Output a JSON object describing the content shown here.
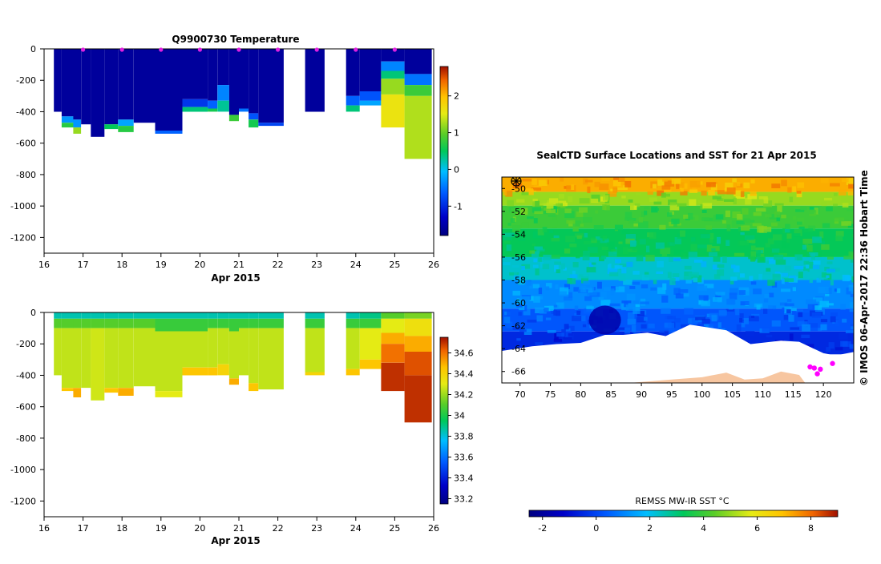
{
  "temperature_panel": {
    "title": "Q9900730  Temperature",
    "xlabel": "Apr 2015",
    "x_ticks": [
      "16",
      "17",
      "18",
      "19",
      "20",
      "21",
      "22",
      "23",
      "24",
      "25",
      "26"
    ],
    "y_ticks": [
      "0",
      "-200",
      "-400",
      "-600",
      "-800",
      "-1000",
      "-1200"
    ],
    "colorbar_ticks": [
      "2",
      "1",
      "0",
      "-1"
    ]
  },
  "salinity_panel": {
    "title": "",
    "xlabel": "Apr 2015",
    "x_ticks": [
      "16",
      "17",
      "18",
      "19",
      "20",
      "21",
      "22",
      "23",
      "24",
      "25",
      "26"
    ],
    "y_ticks": [
      "0",
      "-200",
      "-400",
      "-600",
      "-800",
      "-1000",
      "-1200"
    ],
    "colorbar_ticks": [
      "34.6",
      "34.4",
      "34.2",
      "34",
      "33.8",
      "33.6",
      "33.4",
      "33.2"
    ]
  },
  "map_panel": {
    "title": "SealCTD Surface Locations and SST for 21 Apr 2015",
    "lon_ticks": [
      "70",
      "75",
      "80",
      "85",
      "90",
      "95",
      "100",
      "105",
      "110",
      "115",
      "120"
    ],
    "lat_ticks": [
      "-50",
      "-52",
      "-54",
      "-56",
      "-58",
      "-60",
      "-62",
      "-64",
      "-66"
    ],
    "copyright": "© IMOS 06-Apr-2017 22:36 Hobart Time",
    "colorbar_label": "REMSS MW-IR SST °C",
    "colorbar_ticks": [
      "-2",
      "0",
      "2",
      "4",
      "6",
      "8"
    ]
  },
  "chart_data": [
    {
      "type": "heatmap",
      "title": "Q9900730  Temperature",
      "xlabel": "Apr 2015",
      "ylabel": "",
      "xlim": [
        16,
        26
      ],
      "ylim": [
        -1300,
        0
      ],
      "color_range": [
        -1.8,
        2.8
      ],
      "profile_markers_x": [
        17,
        18,
        19,
        20,
        21,
        22,
        23,
        24,
        25
      ],
      "profiles": [
        {
          "x0": 16.25,
          "x1": 16.45,
          "layers": [
            {
              "to": -400,
              "v": -1.6
            }
          ]
        },
        {
          "x0": 16.45,
          "x1": 16.75,
          "layers": [
            {
              "to": -430,
              "v": -1.6
            },
            {
              "to": -470,
              "v": -0.3
            },
            {
              "to": -500,
              "v": 0.7
            }
          ]
        },
        {
          "x0": 16.75,
          "x1": 16.95,
          "layers": [
            {
              "to": -450,
              "v": -1.6
            },
            {
              "to": -500,
              "v": -0.3
            },
            {
              "to": -540,
              "v": 1.2
            }
          ]
        },
        {
          "x0": 16.95,
          "x1": 17.2,
          "layers": [
            {
              "to": -480,
              "v": -1.6
            }
          ]
        },
        {
          "x0": 17.2,
          "x1": 17.55,
          "layers": [
            {
              "to": -560,
              "v": -1.6
            }
          ]
        },
        {
          "x0": 17.55,
          "x1": 17.9,
          "layers": [
            {
              "to": -480,
              "v": -1.6
            },
            {
              "to": -510,
              "v": 0.5
            }
          ]
        },
        {
          "x0": 17.9,
          "x1": 18.3,
          "layers": [
            {
              "to": -450,
              "v": -1.6
            },
            {
              "to": -490,
              "v": -0.2
            },
            {
              "to": -530,
              "v": 0.7
            }
          ]
        },
        {
          "x0": 18.3,
          "x1": 18.85,
          "layers": [
            {
              "to": -470,
              "v": -1.6
            }
          ]
        },
        {
          "x0": 18.85,
          "x1": 19.55,
          "layers": [
            {
              "to": -520,
              "v": -1.6
            },
            {
              "to": -540,
              "v": -0.6
            }
          ]
        },
        {
          "x0": 19.55,
          "x1": 20.2,
          "layers": [
            {
              "to": -320,
              "v": -1.6
            },
            {
              "to": -370,
              "v": -0.9
            },
            {
              "to": -400,
              "v": 0.4
            }
          ]
        },
        {
          "x0": 20.2,
          "x1": 20.45,
          "layers": [
            {
              "to": -330,
              "v": -1.6
            },
            {
              "to": -380,
              "v": -0.6
            },
            {
              "to": -400,
              "v": 0.6
            }
          ]
        },
        {
          "x0": 20.45,
          "x1": 20.75,
          "layers": [
            {
              "to": -230,
              "v": -1.6
            },
            {
              "to": -330,
              "v": -0.4
            },
            {
              "to": -400,
              "v": 0.3
            }
          ]
        },
        {
          "x0": 20.75,
          "x1": 21.0,
          "layers": [
            {
              "to": -420,
              "v": -1.6
            },
            {
              "to": -460,
              "v": 0.8
            }
          ]
        },
        {
          "x0": 21.0,
          "x1": 21.25,
          "layers": [
            {
              "to": -380,
              "v": -1.6
            },
            {
              "to": -400,
              "v": -0.5
            }
          ]
        },
        {
          "x0": 21.25,
          "x1": 21.5,
          "layers": [
            {
              "to": -410,
              "v": -1.6
            },
            {
              "to": -450,
              "v": -0.7
            },
            {
              "to": -500,
              "v": 0.6
            }
          ]
        },
        {
          "x0": 21.5,
          "x1": 22.15,
          "layers": [
            {
              "to": -470,
              "v": -1.6
            },
            {
              "to": -490,
              "v": -0.8
            }
          ]
        },
        {
          "x0": 22.7,
          "x1": 23.2,
          "layers": [
            {
              "to": -400,
              "v": -1.6
            }
          ]
        },
        {
          "x0": 23.75,
          "x1": 24.1,
          "layers": [
            {
              "to": -300,
              "v": -1.6
            },
            {
              "to": -360,
              "v": -0.6
            },
            {
              "to": -400,
              "v": 0.4
            }
          ]
        },
        {
          "x0": 24.1,
          "x1": 24.65,
          "layers": [
            {
              "to": -270,
              "v": -1.6
            },
            {
              "to": -330,
              "v": -0.7
            },
            {
              "to": -360,
              "v": -0.2
            }
          ]
        },
        {
          "x0": 24.65,
          "x1": 25.25,
          "layers": [
            {
              "to": -80,
              "v": -1.6
            },
            {
              "to": -140,
              "v": -0.4
            },
            {
              "to": -190,
              "v": 0.4
            },
            {
              "to": -290,
              "v": 1.2
            },
            {
              "to": -500,
              "v": 1.6
            }
          ]
        },
        {
          "x0": 25.25,
          "x1": 25.95,
          "layers": [
            {
              "to": -160,
              "v": -1.6
            },
            {
              "to": -230,
              "v": -0.5
            },
            {
              "to": -300,
              "v": 0.8
            },
            {
              "to": -700,
              "v": 1.3
            }
          ]
        }
      ]
    },
    {
      "type": "heatmap",
      "title": "",
      "xlabel": "Apr 2015",
      "ylabel": "",
      "xlim": [
        16,
        26
      ],
      "ylim": [
        -1300,
        0
      ],
      "color_range": [
        33.15,
        34.75
      ],
      "profiles": [
        {
          "x0": 16.25,
          "x1": 16.45,
          "layers": [
            {
              "to": -40,
              "v": 33.85
            },
            {
              "to": -100,
              "v": 34.1
            },
            {
              "to": -400,
              "v": 34.25
            }
          ]
        },
        {
          "x0": 16.45,
          "x1": 16.75,
          "layers": [
            {
              "to": -40,
              "v": 33.85
            },
            {
              "to": -100,
              "v": 34.1
            },
            {
              "to": -480,
              "v": 34.25
            },
            {
              "to": -500,
              "v": 34.45
            }
          ]
        },
        {
          "x0": 16.75,
          "x1": 16.95,
          "layers": [
            {
              "to": -40,
              "v": 33.85
            },
            {
              "to": -100,
              "v": 34.1
            },
            {
              "to": -480,
              "v": 34.25
            },
            {
              "to": -540,
              "v": 34.5
            }
          ]
        },
        {
          "x0": 16.95,
          "x1": 17.2,
          "layers": [
            {
              "to": -40,
              "v": 33.85
            },
            {
              "to": -100,
              "v": 34.1
            },
            {
              "to": -480,
              "v": 34.25
            }
          ]
        },
        {
          "x0": 17.2,
          "x1": 17.55,
          "layers": [
            {
              "to": -40,
              "v": 33.85
            },
            {
              "to": -100,
              "v": 34.1
            },
            {
              "to": -560,
              "v": 34.27
            }
          ]
        },
        {
          "x0": 17.55,
          "x1": 17.9,
          "layers": [
            {
              "to": -40,
              "v": 33.85
            },
            {
              "to": -100,
              "v": 34.1
            },
            {
              "to": -480,
              "v": 34.25
            },
            {
              "to": -510,
              "v": 34.45
            }
          ]
        },
        {
          "x0": 17.9,
          "x1": 18.3,
          "layers": [
            {
              "to": -40,
              "v": 33.85
            },
            {
              "to": -100,
              "v": 34.1
            },
            {
              "to": -480,
              "v": 34.25
            },
            {
              "to": -530,
              "v": 34.5
            }
          ]
        },
        {
          "x0": 18.3,
          "x1": 18.85,
          "layers": [
            {
              "to": -40,
              "v": 33.85
            },
            {
              "to": -100,
              "v": 34.1
            },
            {
              "to": -470,
              "v": 34.25
            }
          ]
        },
        {
          "x0": 18.85,
          "x1": 19.55,
          "layers": [
            {
              "to": -40,
              "v": 33.85
            },
            {
              "to": -120,
              "v": 34.05
            },
            {
              "to": -500,
              "v": 34.25
            },
            {
              "to": -540,
              "v": 34.3
            }
          ]
        },
        {
          "x0": 19.55,
          "x1": 20.2,
          "layers": [
            {
              "to": -40,
              "v": 33.85
            },
            {
              "to": -120,
              "v": 34.05
            },
            {
              "to": -350,
              "v": 34.25
            },
            {
              "to": -400,
              "v": 34.45
            }
          ]
        },
        {
          "x0": 20.2,
          "x1": 20.45,
          "layers": [
            {
              "to": -40,
              "v": 33.85
            },
            {
              "to": -100,
              "v": 34.05
            },
            {
              "to": -350,
              "v": 34.25
            },
            {
              "to": -400,
              "v": 34.45
            }
          ]
        },
        {
          "x0": 20.45,
          "x1": 20.75,
          "layers": [
            {
              "to": -40,
              "v": 33.85
            },
            {
              "to": -100,
              "v": 34.05
            },
            {
              "to": -330,
              "v": 34.25
            },
            {
              "to": -400,
              "v": 34.4
            }
          ]
        },
        {
          "x0": 20.75,
          "x1": 21.0,
          "layers": [
            {
              "to": -40,
              "v": 33.85
            },
            {
              "to": -120,
              "v": 34.05
            },
            {
              "to": -420,
              "v": 34.25
            },
            {
              "to": -460,
              "v": 34.5
            }
          ]
        },
        {
          "x0": 21.0,
          "x1": 21.25,
          "layers": [
            {
              "to": -40,
              "v": 33.85
            },
            {
              "to": -100,
              "v": 34.05
            },
            {
              "to": -400,
              "v": 34.25
            }
          ]
        },
        {
          "x0": 21.25,
          "x1": 21.5,
          "layers": [
            {
              "to": -40,
              "v": 33.85
            },
            {
              "to": -100,
              "v": 34.05
            },
            {
              "to": -450,
              "v": 34.25
            },
            {
              "to": -500,
              "v": 34.45
            }
          ]
        },
        {
          "x0": 21.5,
          "x1": 22.15,
          "layers": [
            {
              "to": -40,
              "v": 33.85
            },
            {
              "to": -100,
              "v": 34.05
            },
            {
              "to": -490,
              "v": 34.25
            }
          ]
        },
        {
          "x0": 22.7,
          "x1": 23.2,
          "layers": [
            {
              "to": -40,
              "v": 33.85
            },
            {
              "to": -100,
              "v": 34.05
            },
            {
              "to": -380,
              "v": 34.25
            },
            {
              "to": -400,
              "v": 34.4
            }
          ]
        },
        {
          "x0": 23.75,
          "x1": 24.1,
          "layers": [
            {
              "to": -40,
              "v": 33.85
            },
            {
              "to": -100,
              "v": 34.05
            },
            {
              "to": -360,
              "v": 34.25
            },
            {
              "to": -400,
              "v": 34.45
            }
          ]
        },
        {
          "x0": 24.1,
          "x1": 24.65,
          "layers": [
            {
              "to": -40,
              "v": 33.9
            },
            {
              "to": -100,
              "v": 34.05
            },
            {
              "to": -300,
              "v": 34.3
            },
            {
              "to": -360,
              "v": 34.45
            }
          ]
        },
        {
          "x0": 24.65,
          "x1": 25.25,
          "layers": [
            {
              "to": -40,
              "v": 34.1
            },
            {
              "to": -130,
              "v": 34.3
            },
            {
              "to": -200,
              "v": 34.5
            },
            {
              "to": -320,
              "v": 34.6
            },
            {
              "to": -500,
              "v": 34.7
            }
          ]
        },
        {
          "x0": 25.25,
          "x1": 25.95,
          "layers": [
            {
              "to": -40,
              "v": 34.15
            },
            {
              "to": -150,
              "v": 34.35
            },
            {
              "to": -250,
              "v": 34.5
            },
            {
              "to": -400,
              "v": 34.65
            },
            {
              "to": -700,
              "v": 34.7
            }
          ]
        }
      ]
    },
    {
      "type": "heatmap",
      "title": "SealCTD Surface Locations and SST for 21 Apr 2015",
      "xlabel": "",
      "ylabel": "",
      "xlim": [
        67,
        125
      ],
      "ylim": [
        -67,
        -49
      ],
      "colorbar_label": "REMSS MW-IR SST °C",
      "color_range": [
        -2.5,
        9
      ],
      "sst_bands": [
        {
          "lat_top": -49,
          "lat_bottom": -50.3,
          "sst": 7.2
        },
        {
          "lat_top": -50.3,
          "lat_bottom": -51.5,
          "sst": 5.0
        },
        {
          "lat_top": -51.5,
          "lat_bottom": -53.5,
          "sst": 4.0
        },
        {
          "lat_top": -53.5,
          "lat_bottom": -56,
          "sst": 3.3
        },
        {
          "lat_top": -56,
          "lat_bottom": -58,
          "sst": 2.3
        },
        {
          "lat_top": -58,
          "lat_bottom": -60.5,
          "sst": 1.1
        },
        {
          "lat_top": -60.5,
          "lat_bottom": -62.5,
          "sst": 0.3
        },
        {
          "lat_top": -62.5,
          "lat_bottom": -64.5,
          "sst": -0.5
        }
      ],
      "cold_anomaly": {
        "lon_center": 84,
        "lat_center": -61.5,
        "sst": -1.8
      },
      "ice_edge": [
        [
          67,
          -64.2
        ],
        [
          72,
          -63.8
        ],
        [
          76,
          -63.6
        ],
        [
          80,
          -63.5
        ],
        [
          84,
          -62.8
        ],
        [
          87,
          -62.8
        ],
        [
          91,
          -62.6
        ],
        [
          94,
          -62.9
        ],
        [
          98,
          -61.9
        ],
        [
          104,
          -62.4
        ],
        [
          108,
          -63.6
        ],
        [
          113,
          -63.3
        ],
        [
          116,
          -63.4
        ],
        [
          120,
          -64.4
        ],
        [
          122,
          -64.6
        ],
        [
          125,
          -64.3
        ]
      ],
      "land": [
        [
          88,
          -67
        ],
        [
          95,
          -66.7
        ],
        [
          100,
          -66.5
        ],
        [
          104,
          -66.1
        ],
        [
          107,
          -66.7
        ],
        [
          110,
          -66.6
        ],
        [
          113,
          -66
        ],
        [
          116,
          -66.3
        ],
        [
          117,
          -67
        ]
      ],
      "seal_locations": [
        [
          118.5,
          -65.7
        ],
        [
          119.5,
          -65.8
        ],
        [
          121.5,
          -65.3
        ],
        [
          119,
          -66.2
        ],
        [
          117.8,
          -65.6
        ]
      ]
    }
  ]
}
